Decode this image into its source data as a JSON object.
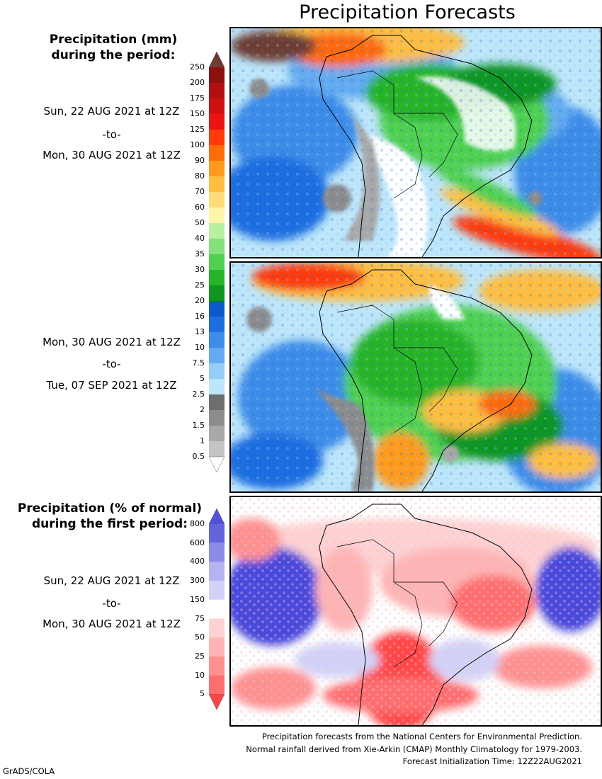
{
  "title": "Precipitation Forecasts",
  "precip_legend": {
    "heading_line1": "Precipitation (mm)",
    "heading_line2": "during the period:",
    "labels": [
      "250",
      "200",
      "175",
      "150",
      "125",
      "100",
      "90",
      "80",
      "70",
      "60",
      "50",
      "40",
      "35",
      "30",
      "25",
      "20",
      "16",
      "13",
      "10",
      "7.5",
      "5",
      "2.5",
      "2",
      "1.5",
      "1",
      "0.5"
    ],
    "colors": [
      "#8b1010",
      "#b01010",
      "#d01010",
      "#ea1414",
      "#ff3a0a",
      "#ff6a0a",
      "#ff9a1e",
      "#ffbe40",
      "#ffdc78",
      "#fff5a8",
      "#b8f0a0",
      "#84e07a",
      "#4fd04f",
      "#28b428",
      "#0f9620",
      "#0d5ac8",
      "#1e6ee0",
      "#3c8ce8",
      "#64aaf0",
      "#96ccf5",
      "#bee6fa",
      "#6e6e6e",
      "#8c8c8c",
      "#a8a8a8",
      "#c4c4c4"
    ],
    "top_arrow_color": "#6e3c32"
  },
  "periods": [
    {
      "start": "Sun, 22 AUG 2021 at 12Z",
      "sep": "-to-",
      "end": "Mon, 30 AUG 2021 at 12Z"
    },
    {
      "start": "Mon, 30 AUG 2021 at 12Z",
      "sep": "-to-",
      "end": "Tue, 07 SEP 2021 at 12Z"
    },
    {
      "start": "Sun, 22 AUG 2021 at 12Z",
      "sep": "-to-",
      "end": "Mon, 30 AUG 2021 at 12Z"
    }
  ],
  "anomaly_legend": {
    "heading_line1": "Precipitation (% of normal)",
    "heading_line2": "during the first period:",
    "labels": [
      "800",
      "600",
      "400",
      "300",
      "150",
      "75",
      "50",
      "25",
      "10",
      "5"
    ],
    "colors": [
      "#6464dc",
      "#8c8ce6",
      "#b4b4f0",
      "#d2d2f8",
      "#ffffff",
      "#ffd2d2",
      "#ffb4b4",
      "#ff9090",
      "#ff6e6e"
    ],
    "top_arrow_color": "#5050d8",
    "bottom_arrow_color": "#ff4646"
  },
  "footer": {
    "line1": "Precipitation forecasts from the National Centers for Environmental Prediction.",
    "line2": "Normal rainfall derived from Xie-Arkin (CMAP) Monthly Climatology for 1979-2003.",
    "line3": "Forecast Initialization Time: 12Z22AUG2021"
  },
  "credit": "GrADS/COLA"
}
